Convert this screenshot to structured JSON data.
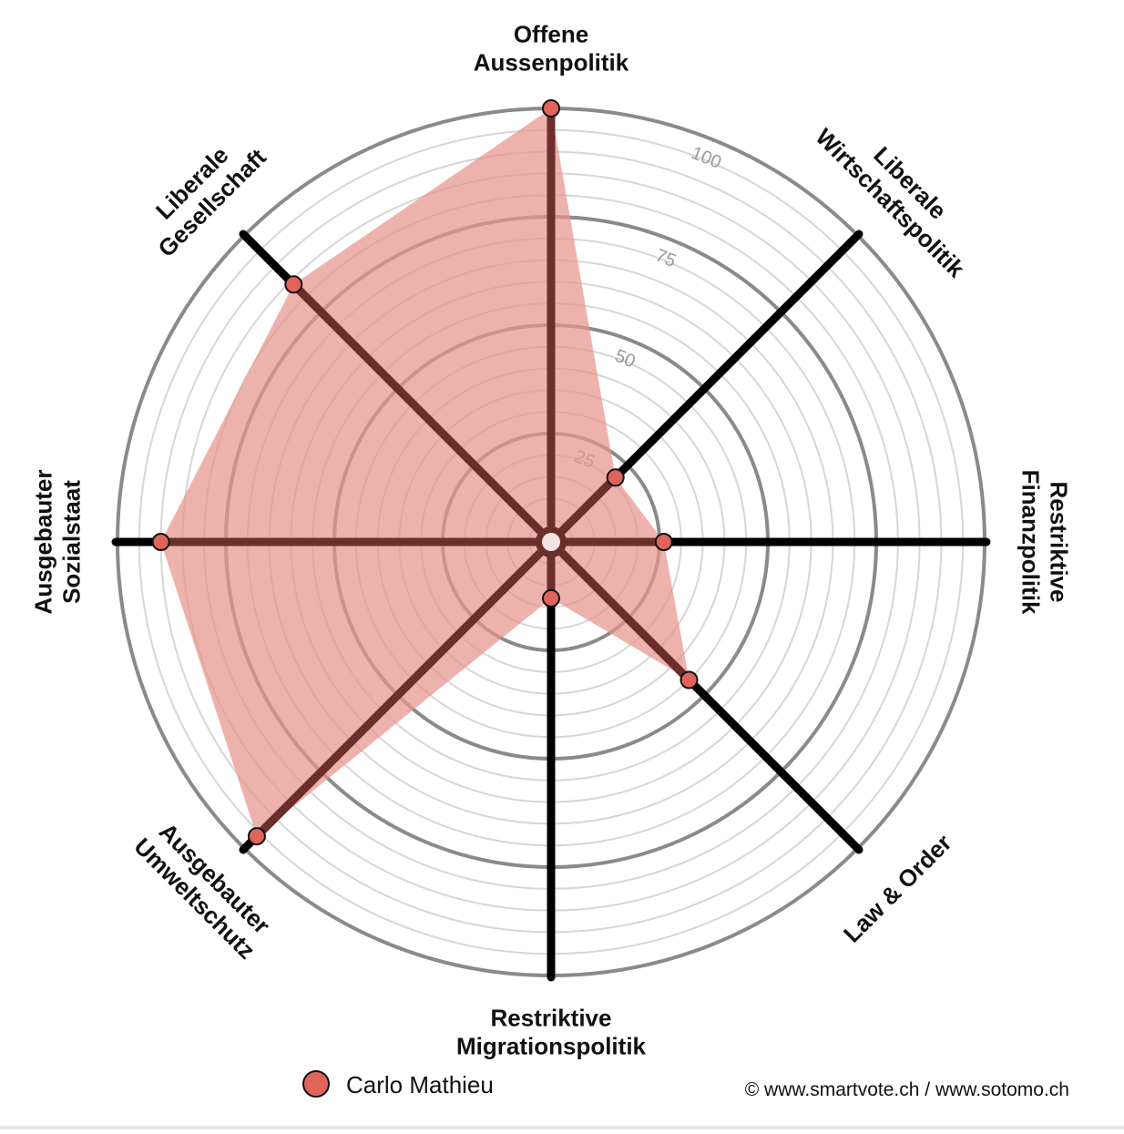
{
  "chart_data": {
    "type": "radar",
    "axes": [
      {
        "label_lines": [
          "Offene",
          "Aussenpolitik"
        ]
      },
      {
        "label_lines": [
          "Liberale",
          "Wirtschaftspolitik"
        ]
      },
      {
        "label_lines": [
          "Restriktive",
          "Finanzpolitik"
        ]
      },
      {
        "label_lines": [
          "Law & Order"
        ]
      },
      {
        "label_lines": [
          "Restriktive",
          "Migrationspolitik"
        ]
      },
      {
        "label_lines": [
          "Ausgebauter",
          "Umweltschutz"
        ]
      },
      {
        "label_lines": [
          "Ausgebauter",
          "Sozialstaat"
        ]
      },
      {
        "label_lines": [
          "Liberale",
          "Gesellschaft"
        ]
      }
    ],
    "rlim": [
      0,
      100
    ],
    "ticks": [
      25,
      50,
      75,
      100
    ],
    "series": [
      {
        "name": "Carlo Mathieu",
        "values": [
          100,
          21,
          26,
          45,
          13,
          96,
          90,
          84
        ],
        "color": "#e0645a",
        "fill_color": "#e8948e",
        "line_color": "#6b2e2a"
      }
    ],
    "grid": true,
    "legend": "bottom-left"
  },
  "credit": "© www.smartvote.ch / www.sotomo.ch",
  "colors": {
    "axis": "#000000",
    "grid_major": "#8a8a8a",
    "grid_minor": "#d6d6d6"
  }
}
